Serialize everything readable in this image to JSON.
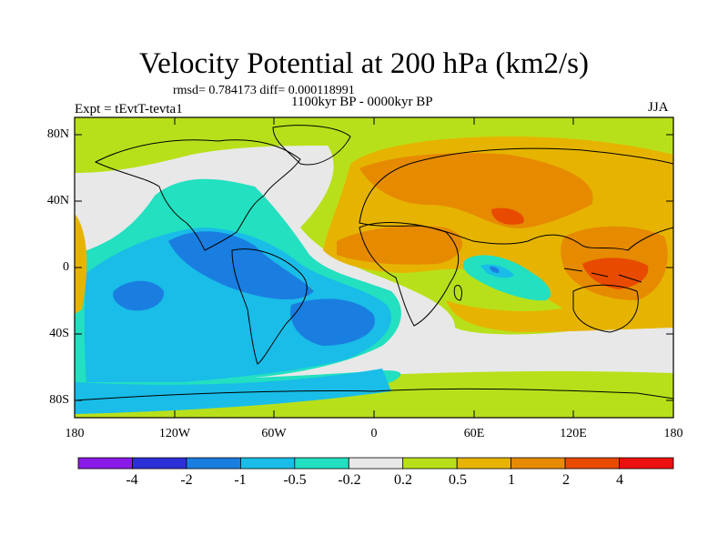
{
  "title": "Velocity Potential at 200 hPa (km2/s)",
  "stats_line": "rmsd= 0.784173  diff= 0.000118991",
  "experiment": "Expt = tEvtT-tevta1",
  "period": "1100kyr BP - 0000kyr BP",
  "season": "JJA",
  "lat_labels": [
    "80N",
    "40N",
    "0",
    "40S",
    "80S"
  ],
  "lon_labels": [
    "180",
    "120W",
    "60W",
    "0",
    "60E",
    "120E",
    "180"
  ],
  "colorbar": {
    "labels": [
      "-4",
      "-2",
      "-1",
      "-0.5",
      "-0.2",
      "0.2",
      "0.5",
      "1",
      "2",
      "4"
    ],
    "colors": [
      "#8a1ae6",
      "#2c2fd6",
      "#1a7ee0",
      "#19bde8",
      "#22e0c0",
      "#e8e8e8",
      "#b8e01a",
      "#e6b400",
      "#e68a00",
      "#e84a00",
      "#ec1010"
    ]
  }
}
